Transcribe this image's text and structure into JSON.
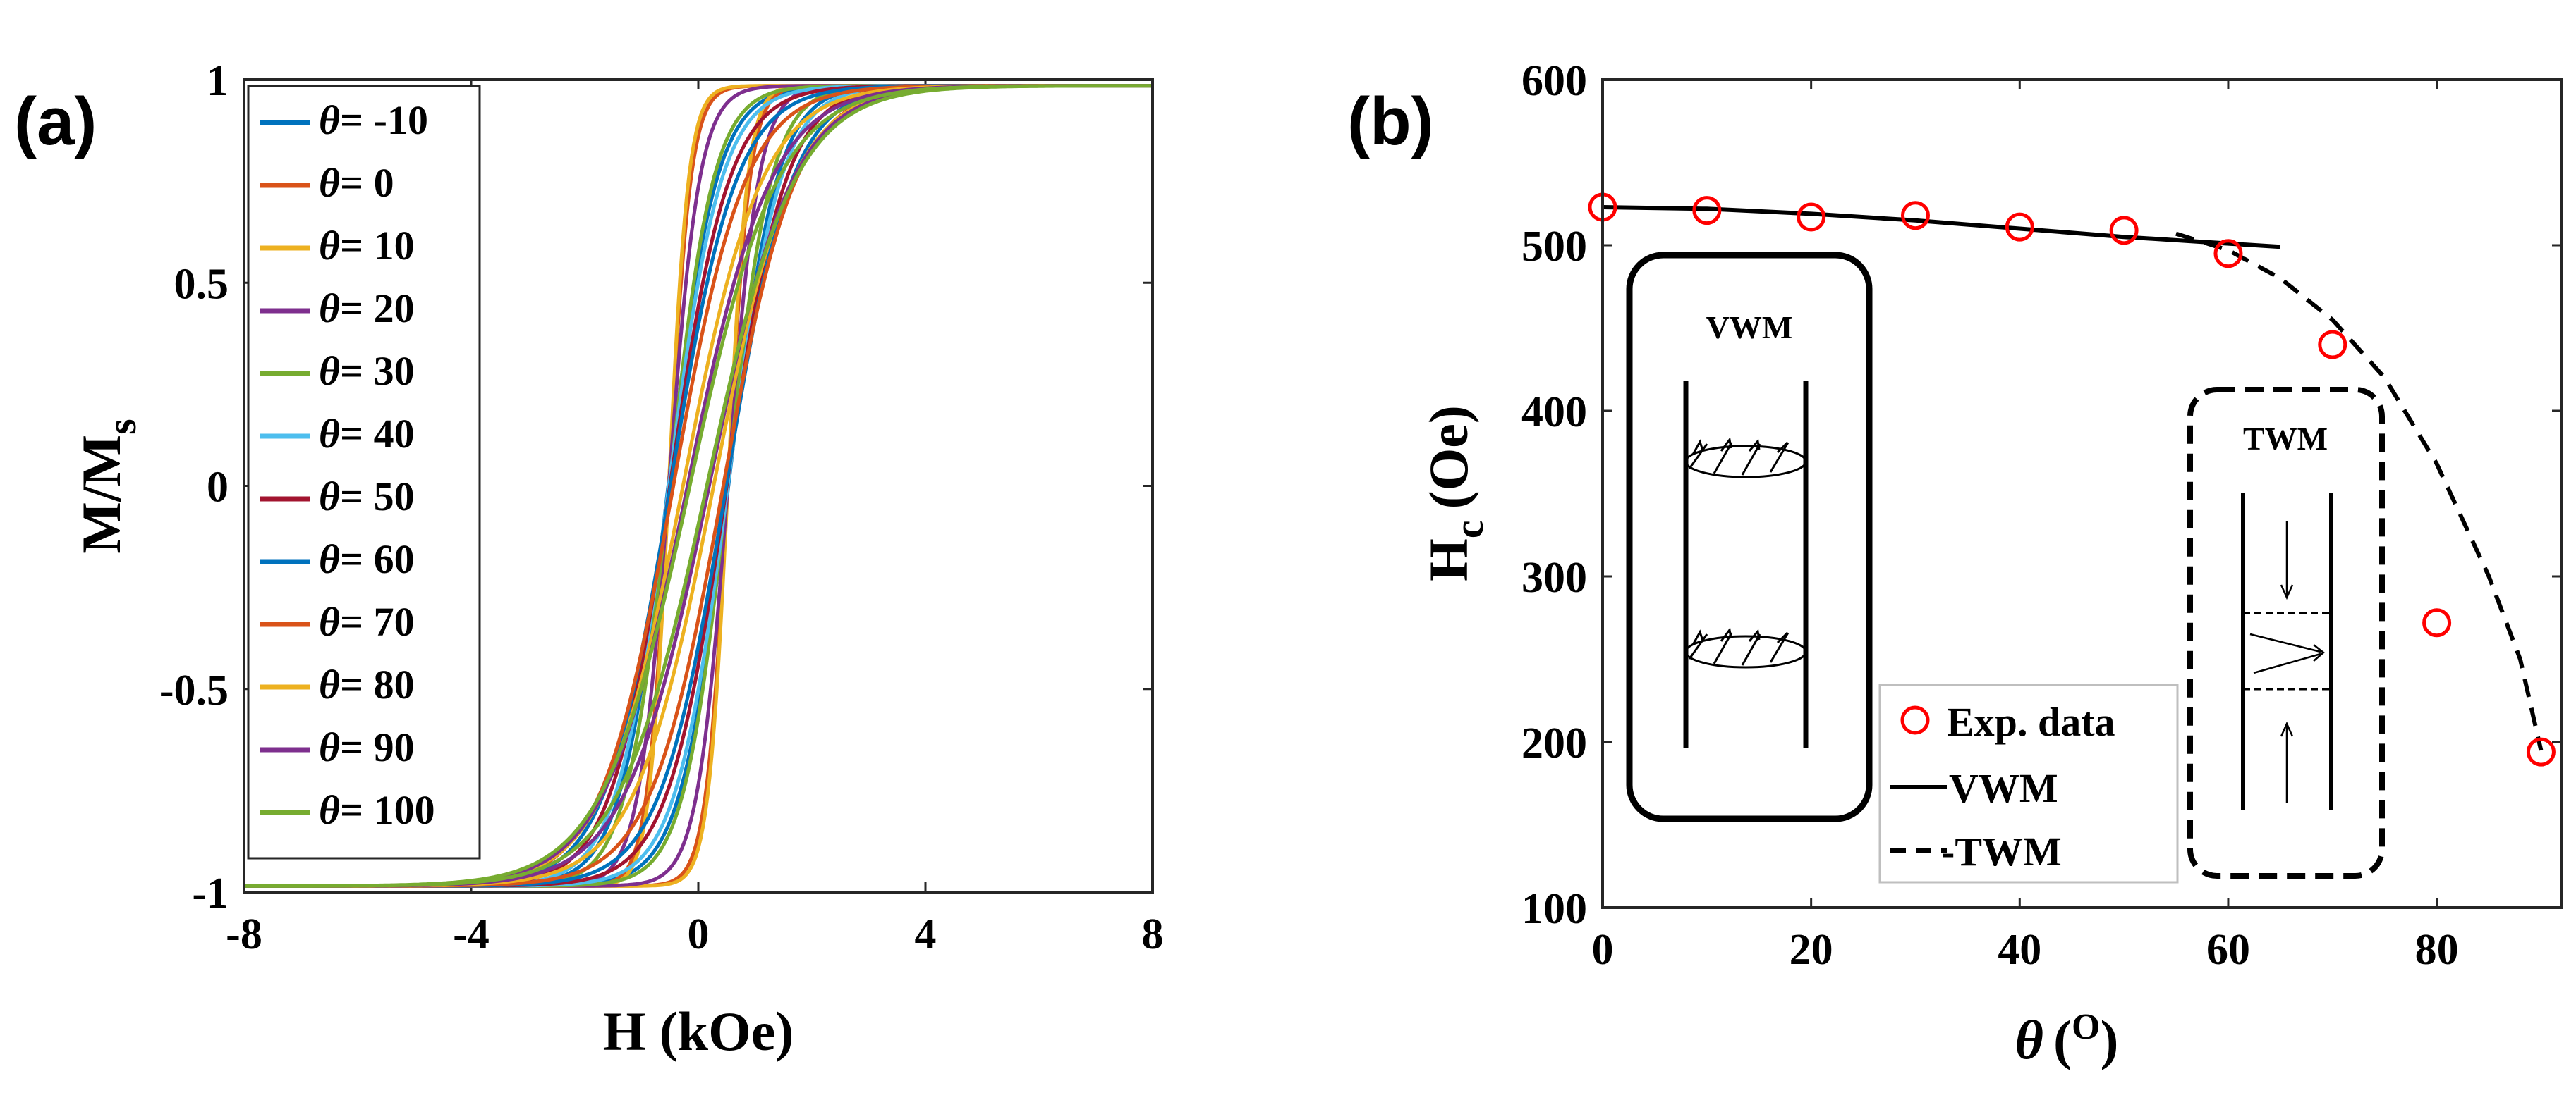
{
  "chart_data": [
    {
      "panel": "(a)",
      "type": "line",
      "title": "",
      "xlabel": "H (kOe)",
      "ylabel": {
        "main": "M/M",
        "sub": "s"
      },
      "xlim": [
        -8,
        8
      ],
      "ylim": [
        -1,
        1
      ],
      "xticks": [
        -8,
        -4,
        0,
        4,
        8
      ],
      "xtick_labels": [
        "-8",
        "-4",
        "0",
        "4",
        "8"
      ],
      "yticks": [
        -1,
        -0.5,
        0,
        0.5,
        1
      ],
      "ytick_labels": [
        "-1",
        "-0.5",
        "0",
        "0.5",
        "1"
      ],
      "legend_position": "top-left",
      "legend_symbol": "θ",
      "series": [
        {
          "name": "θ= -10",
          "theta": -10,
          "color": "#0072BD",
          "coercivity_kOe": 0.53,
          "saturation_field_kOe": 2.2
        },
        {
          "name": "θ= 0",
          "theta": 0,
          "color": "#D95319",
          "coercivity_kOe": 0.52,
          "saturation_field_kOe": 1.0
        },
        {
          "name": "θ= 10",
          "theta": 10,
          "color": "#EDB120",
          "coercivity_kOe": 0.52,
          "saturation_field_kOe": 0.9
        },
        {
          "name": "θ= 20",
          "theta": 20,
          "color": "#7E2F8E",
          "coercivity_kOe": 0.52,
          "saturation_field_kOe": 1.4
        },
        {
          "name": "θ= 30",
          "theta": 30,
          "color": "#77AC30",
          "coercivity_kOe": 0.51,
          "saturation_field_kOe": 2.0
        },
        {
          "name": "θ= 40",
          "theta": 40,
          "color": "#4DBEEE",
          "coercivity_kOe": 0.52,
          "saturation_field_kOe": 2.4
        },
        {
          "name": "θ= 50",
          "theta": 50,
          "color": "#A2142F",
          "coercivity_kOe": 0.5,
          "saturation_field_kOe": 2.7
        },
        {
          "name": "θ= 60",
          "theta": 60,
          "color": "#0072BD",
          "coercivity_kOe": 0.49,
          "saturation_field_kOe": 3.0
        },
        {
          "name": "θ= 70",
          "theta": 70,
          "color": "#D95319",
          "coercivity_kOe": 0.44,
          "saturation_field_kOe": 3.3
        },
        {
          "name": "θ= 80",
          "theta": 80,
          "color": "#EDB120",
          "coercivity_kOe": 0.27,
          "saturation_field_kOe": 3.6
        },
        {
          "name": "θ= 90",
          "theta": 90,
          "color": "#7E2F8E",
          "coercivity_kOe": 0.19,
          "saturation_field_kOe": 3.8
        },
        {
          "name": "θ= 100",
          "theta": 100,
          "color": "#77AC30",
          "coercivity_kOe": 0.15,
          "saturation_field_kOe": 4.0
        }
      ]
    },
    {
      "panel": "(b)",
      "type": "scatter",
      "title": "",
      "xlabel": {
        "symbol": "θ",
        "unit": "(",
        "sup": "O",
        "close": ")"
      },
      "ylabel": {
        "main": "H",
        "sub": "c",
        "unit": "(Oe)"
      },
      "xlim": [
        0,
        92
      ],
      "ylim": [
        100,
        600
      ],
      "xticks": [
        0,
        20,
        40,
        60,
        80
      ],
      "xtick_labels": [
        "0",
        "20",
        "40",
        "60",
        "80"
      ],
      "yticks": [
        100,
        200,
        300,
        400,
        500,
        600
      ],
      "ytick_labels": [
        "100",
        "200",
        "300",
        "400",
        "500",
        "600"
      ],
      "legend_position": "bottom-center",
      "series": [
        {
          "name": "Exp. data",
          "style": "markers",
          "marker_color": "#FF0000",
          "x": [
            0,
            10,
            20,
            30,
            40,
            50,
            60,
            70,
            80,
            90
          ],
          "y": [
            523,
            521,
            517,
            518,
            511,
            509,
            495,
            440,
            272,
            194
          ]
        },
        {
          "name": "VWM",
          "style": "solid",
          "x": [
            0,
            10,
            20,
            30,
            40,
            50,
            60,
            65
          ],
          "y": [
            523,
            522,
            519,
            515,
            510,
            505,
            501,
            499
          ]
        },
        {
          "name": "-TWM",
          "style": "dashed",
          "x": [
            55,
            60,
            65,
            70,
            75,
            80,
            85,
            88,
            90
          ],
          "y": [
            507,
            497,
            480,
            455,
            420,
            368,
            300,
            250,
            195
          ]
        }
      ],
      "insets": [
        {
          "label": "VWM",
          "position": "left"
        },
        {
          "label": "TWM",
          "position": "right"
        }
      ]
    }
  ]
}
